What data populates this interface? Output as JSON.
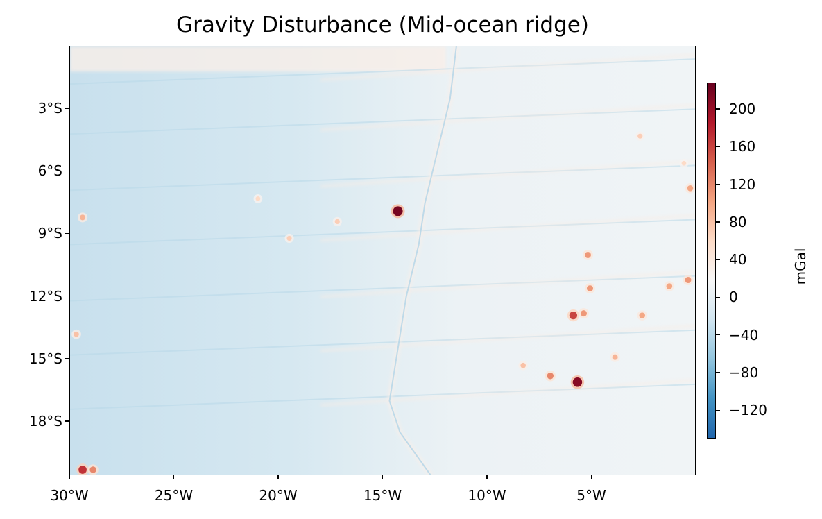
{
  "chart_data": {
    "type": "heatmap",
    "title": "Gravity Disturbance (Mid-ocean ridge)",
    "x": {
      "ticks": [
        -30,
        -25,
        -20,
        -15,
        -10,
        -5
      ],
      "tick_labels": [
        "30°W",
        "25°W",
        "20°W",
        "15°W",
        "10°W",
        "5°W"
      ],
      "lim": [
        -30,
        0
      ]
    },
    "y": {
      "ticks": [
        -3,
        -6,
        -9,
        -12,
        -15,
        -18
      ],
      "tick_labels": [
        "3°S",
        "6°S",
        "9°S",
        "12°S",
        "15°S",
        "18°S"
      ],
      "lim": [
        -20.6,
        0
      ]
    },
    "colorbar": {
      "label": "mGal",
      "colormap": "RdBu_r",
      "min": -150,
      "max": 228,
      "ticks": [
        200,
        160,
        120,
        80,
        40,
        0,
        -40,
        -80,
        -120
      ],
      "tick_labels": [
        "200",
        "160",
        "120",
        "80",
        "40",
        "0",
        "−40",
        "−80",
        "−120"
      ],
      "colors": [
        "#2166ac",
        "#4393c3",
        "#92c5de",
        "#d1e5f0",
        "#f7f7f7",
        "#fddbc7",
        "#f4a582",
        "#d6604d",
        "#b2182b",
        "#67001f"
      ]
    },
    "features": {
      "fracture_zones_lat": [
        -1.2,
        -3.6,
        -6.3,
        -8.9,
        -11.6,
        -14.2,
        -16.8
      ],
      "ridge_axis": [
        [
          -11.5,
          0
        ],
        [
          -11.8,
          -2.5
        ],
        [
          -12.4,
          -5
        ],
        [
          -13.0,
          -7.5
        ],
        [
          -13.3,
          -9.5
        ],
        [
          -13.9,
          -12
        ],
        [
          -14.3,
          -14.5
        ],
        [
          -14.7,
          -17
        ],
        [
          -14.2,
          -18.5
        ],
        [
          -12.7,
          -20.6
        ]
      ],
      "seamounts": [
        {
          "lon": -14.3,
          "lat": -7.9,
          "value": 220
        },
        {
          "lon": -5.7,
          "lat": -16.1,
          "value": 210
        },
        {
          "lon": -5.9,
          "lat": -12.9,
          "value": 160
        },
        {
          "lon": -5.4,
          "lat": -12.8,
          "value": 110
        },
        {
          "lon": -7.0,
          "lat": -15.8,
          "value": 120
        },
        {
          "lon": -5.2,
          "lat": -10.0,
          "value": 110
        },
        {
          "lon": -5.1,
          "lat": -11.6,
          "value": 110
        },
        {
          "lon": -2.6,
          "lat": -12.9,
          "value": 100
        },
        {
          "lon": -0.4,
          "lat": -11.2,
          "value": 110
        },
        {
          "lon": -1.3,
          "lat": -11.5,
          "value": 100
        },
        {
          "lon": -0.3,
          "lat": -6.8,
          "value": 100
        },
        {
          "lon": -3.9,
          "lat": -14.9,
          "value": 90
        },
        {
          "lon": -8.3,
          "lat": -15.3,
          "value": 80
        },
        {
          "lon": -29.4,
          "lat": -20.3,
          "value": 170
        },
        {
          "lon": -28.9,
          "lat": -20.3,
          "value": 120
        },
        {
          "lon": -29.4,
          "lat": -8.2,
          "value": 90
        },
        {
          "lon": -29.7,
          "lat": -13.8,
          "value": 80
        },
        {
          "lon": -17.2,
          "lat": -8.4,
          "value": 70
        },
        {
          "lon": -19.5,
          "lat": -9.2,
          "value": 70
        },
        {
          "lon": -2.7,
          "lat": -4.3,
          "value": 70
        },
        {
          "lon": -21.0,
          "lat": -7.3,
          "value": 60
        },
        {
          "lon": -0.6,
          "lat": -5.6,
          "value": 60
        }
      ]
    }
  }
}
